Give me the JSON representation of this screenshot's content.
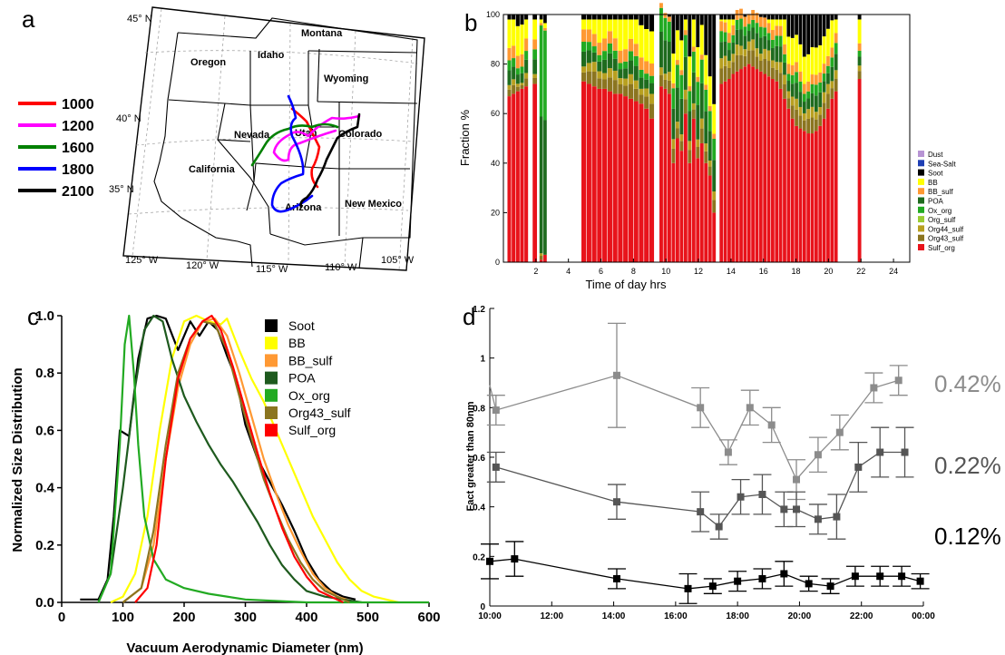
{
  "panel_labels": {
    "a": "a",
    "b": "b",
    "c": "c",
    "d": "d"
  },
  "map": {
    "states": [
      "Montana",
      "Oregon",
      "Idaho",
      "Wyoming",
      "Nevada",
      "Utah",
      "Colorado",
      "California",
      "Arizona",
      "New Mexico"
    ],
    "lat_labels": [
      "45° N",
      "40° N",
      "35° N"
    ],
    "lon_labels": [
      "125° W",
      "120° W",
      "115° W",
      "110° W",
      "105° W"
    ],
    "legend": [
      {
        "label": "1000",
        "color": "#ff0000"
      },
      {
        "label": "1200",
        "color": "#ff00ff"
      },
      {
        "label": "1600",
        "color": "#008000"
      },
      {
        "label": "1800",
        "color": "#0000ff"
      },
      {
        "label": "2100",
        "color": "#000000"
      }
    ]
  },
  "chart_data": [
    {
      "id": "b",
      "type": "bar",
      "stacked": true,
      "ylabel": "Fraction %",
      "xlabel": "Time of day hrs",
      "xlim": [
        0,
        25
      ],
      "ylim": [
        0,
        100
      ],
      "xticks": [
        2,
        4,
        6,
        8,
        10,
        12,
        14,
        16,
        18,
        20,
        22,
        24
      ],
      "yticks": [
        0,
        20,
        40,
        60,
        80,
        100
      ],
      "legend": [
        {
          "name": "Dust",
          "color": "#b794d4"
        },
        {
          "name": "Sea-Salt",
          "color": "#1f3fb4"
        },
        {
          "name": "Soot",
          "color": "#000000"
        },
        {
          "name": "BB",
          "color": "#ffff00"
        },
        {
          "name": "BB_sulf",
          "color": "#ff9933"
        },
        {
          "name": "POA",
          "color": "#1e6b1e"
        },
        {
          "name": "Ox_org",
          "color": "#22aa22"
        },
        {
          "name": "Org_sulf",
          "color": "#99cc33"
        },
        {
          "name": "Org44_sulf",
          "color": "#b8a020"
        },
        {
          "name": "Org43_sulf",
          "color": "#8b7520"
        },
        {
          "name": "Sulf_org",
          "color": "#e8131b"
        }
      ],
      "segments": [
        {
          "start": 0.25,
          "end": 1.55,
          "sulf": [
            67,
            68,
            69,
            70,
            71
          ],
          "olive": 4,
          "green": 8,
          "orange": 5,
          "yellow": 12
        },
        {
          "start": 1.8,
          "end": 2.1,
          "sulf": [
            72
          ],
          "olive": 2,
          "green": 8,
          "orange": 4,
          "yellow": 11
        },
        {
          "start": 2.22,
          "end": 2.7,
          "sulf": [
            1,
            3
          ],
          "olive": 1,
          "green": 90,
          "orange": 1,
          "yellow": 2
        },
        {
          "start": 4.8,
          "end": 9.3,
          "sulf": [
            73,
            72,
            71,
            70,
            70,
            69,
            68,
            68,
            67,
            66,
            65,
            64,
            62,
            58
          ],
          "olive": 8,
          "green": 8,
          "orange": 5,
          "yellow": 13
        },
        {
          "start": 9.6,
          "end": 13.1,
          "sulf": [
            71,
            70,
            68,
            40,
            50,
            45,
            60,
            40,
            58,
            42,
            48,
            40,
            35,
            20
          ],
          "olive": 8,
          "green": 22,
          "orange": 2,
          "yellow": 12
        },
        {
          "start": 13.3,
          "end": 20.6,
          "sulf": [
            72,
            73,
            74,
            76,
            77,
            78,
            79,
            80,
            79,
            78,
            77,
            76,
            75,
            74,
            73,
            70,
            66,
            62,
            58,
            55,
            54,
            53,
            52,
            52,
            53,
            55,
            58,
            62,
            66,
            69
          ],
          "olive": 9,
          "green": 9,
          "orange": 4,
          "yellow": 11
        },
        {
          "start": 21.8,
          "end": 22.05,
          "sulf": [
            74
          ],
          "olive": 5,
          "green": 4,
          "orange": 3,
          "yellow": 10
        }
      ]
    },
    {
      "id": "c",
      "type": "line",
      "xlabel": "Vacuum Aerodynamic Diameter (nm)",
      "ylabel": "Normalized Size Distribution",
      "xlim": [
        0,
        600
      ],
      "ylim": [
        0,
        1.0
      ],
      "xticks": [
        0,
        100,
        200,
        300,
        400,
        500,
        600
      ],
      "yticks": [
        "0.0",
        "0.2",
        "0.4",
        "0.6",
        "0.8",
        "1.0"
      ],
      "series": [
        {
          "name": "Soot",
          "color": "#000000",
          "x": [
            30,
            60,
            75,
            85,
            95,
            110,
            125,
            140,
            155,
            170,
            190,
            210,
            225,
            240,
            255,
            270,
            285,
            300,
            320,
            340,
            360,
            380,
            400,
            420,
            440,
            460,
            480
          ],
          "y": [
            0.01,
            0.01,
            0.08,
            0.3,
            0.6,
            0.58,
            0.85,
            0.99,
            1.0,
            0.99,
            0.88,
            0.98,
            0.93,
            0.98,
            0.95,
            0.86,
            0.78,
            0.62,
            0.5,
            0.42,
            0.34,
            0.25,
            0.15,
            0.08,
            0.04,
            0.02,
            0.01
          ]
        },
        {
          "name": "BB",
          "color": "#ffff00",
          "x": [
            80,
            100,
            120,
            140,
            160,
            180,
            200,
            220,
            240,
            260,
            270,
            290,
            310,
            330,
            350,
            370,
            390,
            410,
            430,
            450,
            470,
            490,
            510,
            530,
            550
          ],
          "y": [
            0.0,
            0.02,
            0.1,
            0.3,
            0.6,
            0.85,
            0.98,
            1.0,
            0.98,
            0.97,
            0.99,
            0.88,
            0.78,
            0.7,
            0.6,
            0.5,
            0.4,
            0.3,
            0.22,
            0.14,
            0.08,
            0.04,
            0.02,
            0.01,
            0.0
          ]
        },
        {
          "name": "BB_sulf",
          "color": "#ff9933",
          "x": [
            100,
            130,
            150,
            170,
            190,
            210,
            230,
            250,
            270,
            290,
            310,
            330,
            350,
            370,
            390,
            410,
            430,
            450,
            480
          ],
          "y": [
            0.0,
            0.05,
            0.2,
            0.5,
            0.75,
            0.9,
            0.98,
            0.99,
            0.93,
            0.8,
            0.65,
            0.5,
            0.38,
            0.27,
            0.18,
            0.1,
            0.05,
            0.02,
            0.0
          ]
        },
        {
          "name": "POA",
          "color": "#1e5a1e",
          "x": [
            60,
            80,
            100,
            120,
            135,
            150,
            165,
            180,
            200,
            220,
            240,
            260,
            280,
            300,
            320,
            340,
            360,
            380,
            400,
            430,
            460,
            490
          ],
          "y": [
            0.0,
            0.1,
            0.4,
            0.75,
            0.95,
            1.0,
            0.98,
            0.85,
            0.72,
            0.63,
            0.55,
            0.48,
            0.42,
            0.35,
            0.28,
            0.2,
            0.13,
            0.08,
            0.04,
            0.02,
            0.01,
            0.0
          ]
        },
        {
          "name": "Ox_org",
          "color": "#22aa22",
          "x": [
            60,
            80,
            95,
            103,
            110,
            118,
            125,
            135,
            150,
            170,
            200,
            240,
            300,
            400,
            500,
            600
          ],
          "y": [
            0.0,
            0.1,
            0.55,
            0.9,
            1.0,
            0.8,
            0.55,
            0.3,
            0.15,
            0.08,
            0.05,
            0.03,
            0.01,
            0.0,
            0.0,
            0.0
          ]
        },
        {
          "name": "Org43_sulf",
          "color": "#8b7520",
          "x": [
            100,
            130,
            150,
            170,
            190,
            210,
            230,
            250,
            270,
            290,
            310,
            330,
            350,
            370,
            390,
            410,
            430,
            450,
            470
          ],
          "y": [
            0.0,
            0.05,
            0.25,
            0.55,
            0.8,
            0.92,
            0.98,
            0.97,
            0.88,
            0.72,
            0.57,
            0.43,
            0.32,
            0.22,
            0.14,
            0.08,
            0.04,
            0.02,
            0.0
          ]
        },
        {
          "name": "Sulf_org",
          "color": "#ff0000",
          "x": [
            120,
            140,
            155,
            170,
            190,
            210,
            230,
            245,
            260,
            280,
            300,
            320,
            340,
            360,
            380,
            400,
            420,
            440,
            460
          ],
          "y": [
            0.0,
            0.05,
            0.2,
            0.5,
            0.78,
            0.92,
            0.98,
            1.0,
            0.95,
            0.82,
            0.67,
            0.52,
            0.38,
            0.26,
            0.16,
            0.09,
            0.04,
            0.02,
            0.0
          ]
        }
      ]
    },
    {
      "id": "d",
      "type": "line",
      "ylabel": "Fact greater than 80nm",
      "xlim": [
        10,
        24
      ],
      "ylim": [
        0,
        1.2
      ],
      "xticks": [
        "10:00",
        "12:00",
        "14:00",
        "16:00",
        "18:00",
        "20:00",
        "22:00",
        "00:00"
      ],
      "yticks": [
        "0",
        "0.2",
        "0.4",
        "0.6",
        "0.8",
        "1",
        "1.2"
      ],
      "series": [
        {
          "name": "0.42%",
          "color": "#8c8c8c",
          "x": [
            10.2,
            14.1,
            16.8,
            17.7,
            18.4,
            19.1,
            19.9,
            20.6,
            21.3,
            22.4,
            23.2
          ],
          "y": [
            0.79,
            0.93,
            0.8,
            0.62,
            0.8,
            0.73,
            0.51,
            0.61,
            0.7,
            0.88,
            0.91
          ],
          "err": [
            0.06,
            0.21,
            0.08,
            0.05,
            0.07,
            0.07,
            0.08,
            0.07,
            0.07,
            0.06,
            0.06
          ]
        },
        {
          "name": "0.22%",
          "color": "#555555",
          "x": [
            10.2,
            14.1,
            16.8,
            17.4,
            18.1,
            18.8,
            19.5,
            19.9,
            20.6,
            21.2,
            21.9,
            22.6,
            23.4
          ],
          "y": [
            0.56,
            0.42,
            0.38,
            0.32,
            0.44,
            0.45,
            0.39,
            0.39,
            0.35,
            0.36,
            0.56,
            0.62,
            0.62
          ],
          "err": [
            0.06,
            0.07,
            0.08,
            0.05,
            0.07,
            0.08,
            0.07,
            0.07,
            0.06,
            0.09,
            0.1,
            0.1,
            0.1
          ]
        },
        {
          "name": "0.12%",
          "color": "#000000",
          "x": [
            10.0,
            10.8,
            14.1,
            16.4,
            17.2,
            18.0,
            18.8,
            19.5,
            20.3,
            21.0,
            21.8,
            22.6,
            23.3,
            23.9
          ],
          "y": [
            0.18,
            0.19,
            0.11,
            0.07,
            0.08,
            0.1,
            0.11,
            0.13,
            0.09,
            0.08,
            0.12,
            0.12,
            0.12,
            0.1
          ],
          "err": [
            0.07,
            0.07,
            0.04,
            0.06,
            0.03,
            0.04,
            0.04,
            0.05,
            0.03,
            0.03,
            0.04,
            0.04,
            0.04,
            0.03
          ]
        }
      ]
    }
  ]
}
